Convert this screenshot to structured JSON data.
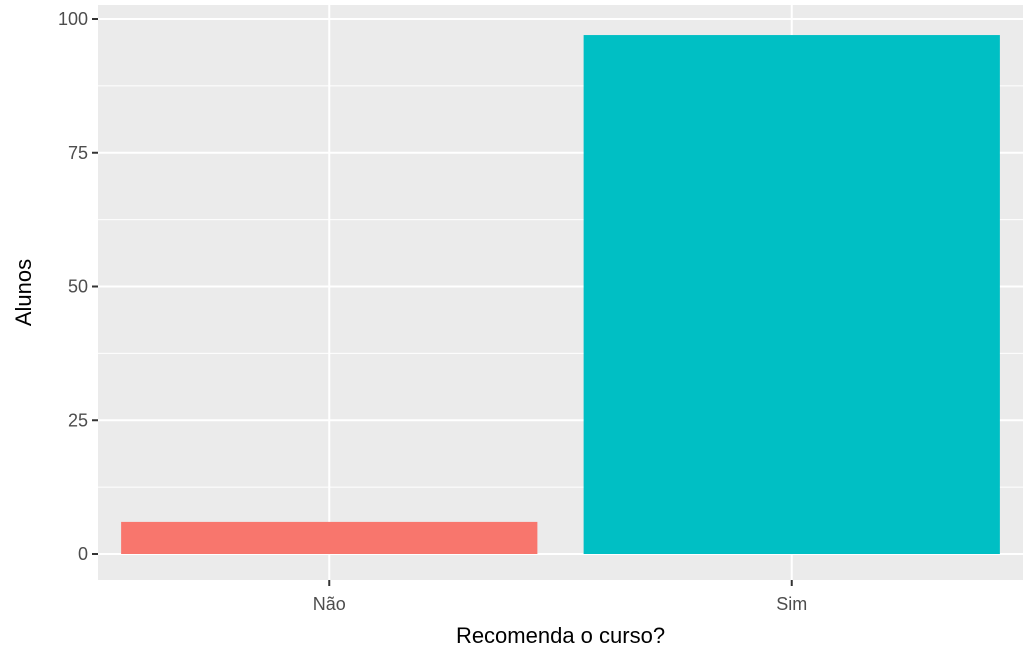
{
  "chart_data": {
    "type": "bar",
    "categories": [
      "Não",
      "Sim"
    ],
    "values": [
      6,
      97
    ],
    "colors": [
      "#F8766D",
      "#00BFC4"
    ],
    "xlabel": "Recomenda o curso?",
    "ylabel": "Alunos",
    "ylim": [
      0,
      100
    ],
    "yticks": [
      0,
      25,
      50,
      75,
      100
    ],
    "yticks_minor": [
      12.5,
      37.5,
      62.5,
      87.5
    ],
    "grid": true,
    "panel_background": "#EBEBEB",
    "legend": "none"
  }
}
